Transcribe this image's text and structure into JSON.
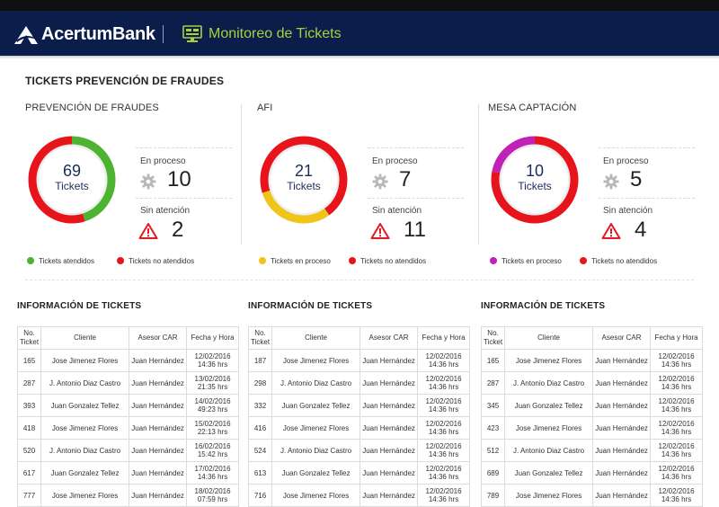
{
  "header": {
    "brand": "AcertumBank",
    "app_title": "Monitoreo de Tickets",
    "colors": {
      "bar": "#0b1d4b",
      "title": "#a9d13a"
    },
    "icons": [
      "logo-icon",
      "monitor-icon"
    ]
  },
  "section_title": "TICKETS PREVENCIÓN DE FRAUDES",
  "panels": [
    {
      "title": "PREVENCIÓN DE FRAUDES",
      "total": "69",
      "total_label": "Tickets",
      "stats": {
        "proceso_label": "En proceso",
        "proceso_value": "10",
        "sin_label": "Sin atención",
        "sin_value": "2"
      },
      "legend": [
        {
          "label": "Tickets atendidos",
          "color": "#4db331"
        },
        {
          "label": "Tickets no atendidos",
          "color": "#e8141b"
        }
      ],
      "donut": [
        {
          "fraction": 0.45,
          "color": "#4db331"
        },
        {
          "fraction": 0.55,
          "color": "#e8141b"
        }
      ]
    },
    {
      "title": "AFI",
      "total": "21",
      "total_label": "Tickets",
      "stats": {
        "proceso_label": "En proceso",
        "proceso_value": "7",
        "sin_label": "Sin atención",
        "sin_value": "11"
      },
      "legend": [
        {
          "label": "Tickets en proceso",
          "color": "#f0c419"
        },
        {
          "label": "Tickets no atendidos",
          "color": "#e8141b"
        }
      ],
      "donut": [
        {
          "fraction": 0.4,
          "color": "#e8141b"
        },
        {
          "fraction": 0.3,
          "color": "#f0c419"
        },
        {
          "fraction": 0.3,
          "color": "#e8141b"
        }
      ]
    },
    {
      "title": "MESA CAPTACIÓN",
      "total": "10",
      "total_label": "Tickets",
      "stats": {
        "proceso_label": "En proceso",
        "proceso_value": "5",
        "sin_label": "Sin atención",
        "sin_value": "4"
      },
      "legend": [
        {
          "label": "Tickets en proceso",
          "color": "#c221b8"
        },
        {
          "label": "Tickets no atendidos",
          "color": "#e8141b"
        }
      ],
      "donut": [
        {
          "fraction": 0.78,
          "color": "#e8141b"
        },
        {
          "fraction": 0.22,
          "color": "#c221b8"
        }
      ]
    }
  ],
  "tables": [
    {
      "title": "INFORMACIÓN DE TICKETS",
      "columns": [
        "No. Ticket",
        "Cliente",
        "Asesor CAR",
        "Fecha y Hora"
      ],
      "rows": [
        [
          "165",
          "Jose Jimenez Flores",
          "Juan Hernández",
          "12/02/2016",
          "14:36 hrs"
        ],
        [
          "287",
          "J. Antonio Diaz Castro",
          "Juan Hernández",
          "13/02/2016",
          "21:35 hrs"
        ],
        [
          "393",
          "Juan Gonzalez Tellez",
          "Juan Hernández",
          "14/02/2016",
          "49:23 hrs"
        ],
        [
          "418",
          "Jose Jimenez Flores",
          "Juan Hernández",
          "15/02/2016",
          "22:13 hrs"
        ],
        [
          "520",
          "J. Antonio Diaz Castro",
          "Juan Hernández",
          "16/02/2016",
          "15:42 hrs"
        ],
        [
          "617",
          "Juan Gonzalez Tellez",
          "Juan Hernández",
          "17/02/2016",
          "14:36 hrs"
        ],
        [
          "777",
          "Jose Jimenez Flores",
          "Juan Hernández",
          "18/02/2016",
          "07:59 hrs"
        ]
      ]
    },
    {
      "title": "INFORMACIÓN DE TICKETS",
      "columns": [
        "No. Ticket",
        "Cliente",
        "Asesor CAR",
        "Fecha y Hora"
      ],
      "rows": [
        [
          "187",
          "Jose Jimenez Flores",
          "Juan Hernández",
          "12/02/2016",
          "14:36 hrs"
        ],
        [
          "298",
          "J. Antonio Diaz Castro",
          "Juan Hernández",
          "12/02/2016",
          "14:36 hrs"
        ],
        [
          "332",
          "Juan Gonzalez Tellez",
          "Juan Hernández",
          "12/02/2016",
          "14:36 hrs"
        ],
        [
          "416",
          "Jose Jimenez Flores",
          "Juan Hernández",
          "12/02/2016",
          "14:36 hrs"
        ],
        [
          "524",
          "J. Antonio Diaz Castro",
          "Juan Hernández",
          "12/02/2016",
          "14:36 hrs"
        ],
        [
          "613",
          "Juan Gonzalez Tellez",
          "Juan Hernández",
          "12/02/2016",
          "14:36 hrs"
        ],
        [
          "716",
          "Jose Jimenez Flores",
          "Juan Hernández",
          "12/02/2016",
          "14:36 hrs"
        ]
      ]
    },
    {
      "title": "INFORMACIÓN DE TICKETS",
      "columns": [
        "No. Ticket",
        "Cliente",
        "Asesor CAR",
        "Fecha y Hora"
      ],
      "rows": [
        [
          "165",
          "Jose Jimenez Flores",
          "Juan Hernández",
          "12/02/2016",
          "14:36 hrs"
        ],
        [
          "287",
          "J. Antonio Diaz Castro",
          "Juan Hernández",
          "12/02/2016",
          "14:36 hrs"
        ],
        [
          "345",
          "Juan Gonzalez Tellez",
          "Juan Hernández",
          "12/02/2016",
          "14:36 hrs"
        ],
        [
          "423",
          "Jose Jimenez Flores",
          "Juan Hernández",
          "12/02/2016",
          "14:36 hrs"
        ],
        [
          "512",
          "J. Antonio Diaz Castro",
          "Juan Hernández",
          "12/02/2016",
          "14:36 hrs"
        ],
        [
          "689",
          "Juan Gonzalez Tellez",
          "Juan Hernández",
          "12/02/2016",
          "14:36 hrs"
        ],
        [
          "789",
          "Jose Jimenez Flores",
          "Juan Hernández",
          "12/02/2016",
          "14:36 hrs"
        ]
      ]
    }
  ]
}
